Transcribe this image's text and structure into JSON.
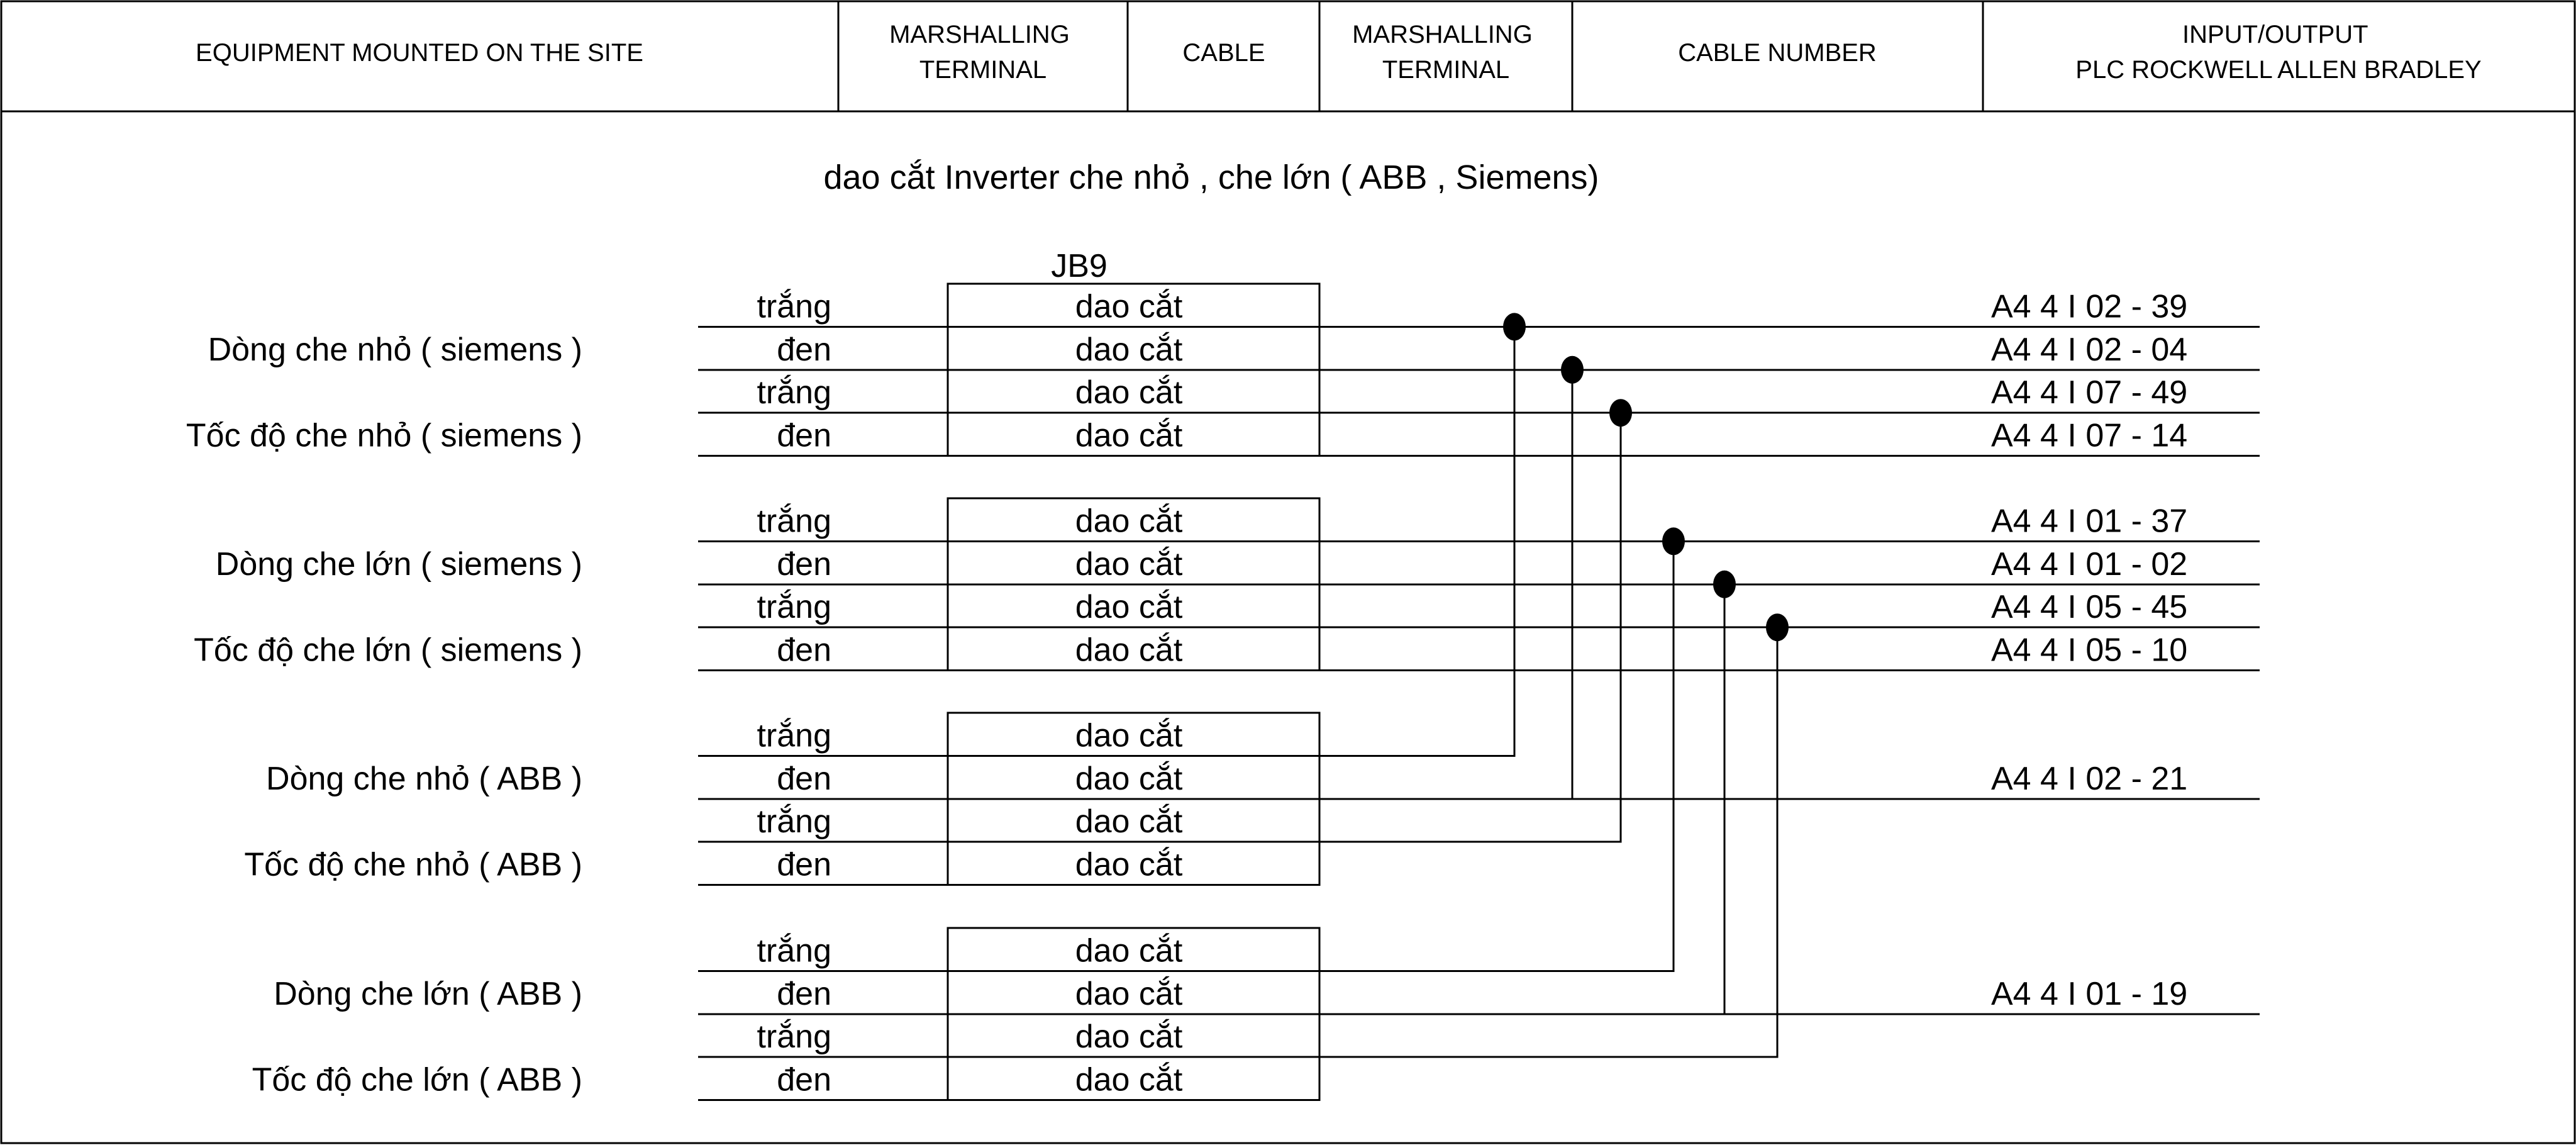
{
  "header": {
    "columns": [
      {
        "lines": [
          "EQUIPMENT MOUNTED ON THE SITE"
        ]
      },
      {
        "lines": [
          "MARSHALLING",
          "TERMINAL"
        ]
      },
      {
        "lines": [
          "CABLE"
        ]
      },
      {
        "lines": [
          "MARSHALLING",
          "TERMINAL"
        ]
      },
      {
        "lines": [
          "CABLE NUMBER"
        ]
      },
      {
        "lines": [
          "INPUT/OUTPUT",
          "PLC ROCKWELL ALLEN BRADLEY"
        ]
      }
    ]
  },
  "diagram": {
    "title": "dao cắt Inverter che nhỏ , che lớn ( ABB , Siemens)",
    "junction_box": "JB9",
    "groups": [
      {
        "devices": [
          "Dòng che nhỏ ( siemens )",
          "Tốc độ che nhỏ ( siemens )"
        ],
        "rows": [
          {
            "wire": "trắng",
            "terminal": "dao cắt",
            "io": "A4   4 I  02  -  39"
          },
          {
            "wire": "đen",
            "terminal": "dao cắt",
            "io": "A4   4 I  02  -  04"
          },
          {
            "wire": "trắng",
            "terminal": "dao cắt",
            "io": "A4   4 I  07  -  49"
          },
          {
            "wire": "đen",
            "terminal": "dao cắt",
            "io": "A4   4 I  07  -  14"
          }
        ]
      },
      {
        "devices": [
          "Dòng che lớn ( siemens )",
          "Tốc độ che lớn ( siemens )"
        ],
        "rows": [
          {
            "wire": "trắng",
            "terminal": "dao cắt",
            "io": "A4   4 I  01  -  37"
          },
          {
            "wire": "đen",
            "terminal": "dao cắt",
            "io": "A4   4 I  01  -  02"
          },
          {
            "wire": "trắng",
            "terminal": "dao cắt",
            "io": "A4   4 I  05  -  45"
          },
          {
            "wire": "đen",
            "terminal": "dao cắt",
            "io": "A4   4 I  05  -  10"
          }
        ]
      },
      {
        "devices": [
          "Dòng che nhỏ ( ABB )",
          "Tốc độ che nhỏ ( ABB  )"
        ],
        "rows": [
          {
            "wire": "trắng",
            "terminal": "dao cắt",
            "io": ""
          },
          {
            "wire": "đen",
            "terminal": "dao cắt",
            "io": "A4   4 I  02  -  21"
          },
          {
            "wire": "trắng",
            "terminal": "dao cắt",
            "io": ""
          },
          {
            "wire": "đen",
            "terminal": "dao cắt",
            "io": ""
          }
        ]
      },
      {
        "devices": [
          "Dòng che lớn (  ABB  )",
          "Tốc độ che lớn (  ABB  )"
        ],
        "rows": [
          {
            "wire": "trắng",
            "terminal": "dao cắt",
            "io": ""
          },
          {
            "wire": "đen",
            "terminal": "dao cắt",
            "io": "A4   4 I  01  -  19"
          },
          {
            "wire": "trắng",
            "terminal": "dao cắt",
            "io": ""
          },
          {
            "wire": "đen",
            "terminal": "dao cắt",
            "io": ""
          }
        ]
      }
    ]
  }
}
